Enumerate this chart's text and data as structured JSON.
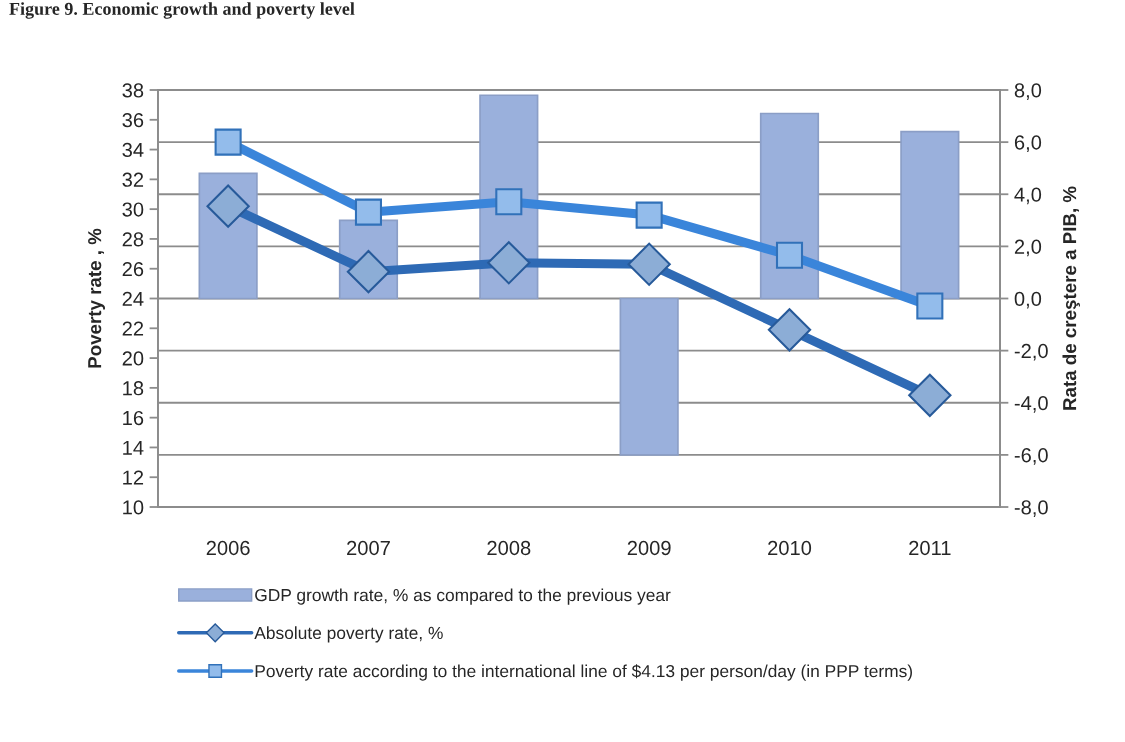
{
  "chart_data": {
    "type": "bar",
    "title": "Figure 9. Economic growth and poverty level",
    "categories": [
      "2006",
      "2007",
      "2008",
      "2009",
      "2010",
      "2011"
    ],
    "series": [
      {
        "name": "GDP growth rate, % as compared to the previous year",
        "axis": "y2",
        "color": "#9ab0dc",
        "values": [
          4.8,
          3.0,
          7.8,
          -6.0,
          7.1,
          6.4
        ]
      },
      {
        "name": "Absolute poverty rate, %",
        "type": "line",
        "color": "#2e6ab5",
        "marker": "diamond",
        "line_style": "solid",
        "values": [
          30.2,
          25.8,
          26.4,
          26.3,
          21.9,
          17.5
        ]
      },
      {
        "name": "Poverty rate according to the international line of $4.13 per person/day (in PPP terms)",
        "type": "line",
        "color": "#3a85da",
        "marker": "square",
        "line_style": "solid",
        "values": [
          34.5,
          29.8,
          30.5,
          29.6,
          26.9,
          23.5
        ]
      }
    ],
    "ylabel": "Poverty rate , %",
    "y2label": "Rata de creştere a PIB, %",
    "ylim": [
      10,
      38
    ],
    "yticks": [
      10,
      12,
      14,
      16,
      18,
      20,
      22,
      24,
      26,
      28,
      30,
      32,
      34,
      36,
      38
    ],
    "y2lim": [
      -8,
      8
    ],
    "y2ticks": [
      {
        "value": -8,
        "label": "-8,0"
      },
      {
        "value": -6,
        "label": "-6,0"
      },
      {
        "value": -4,
        "label": "-4,0"
      },
      {
        "value": -2,
        "label": "-2,0"
      },
      {
        "value": 0,
        "label": "0,0"
      },
      {
        "value": 2,
        "label": "2,0"
      },
      {
        "value": 4,
        "label": "4,0"
      },
      {
        "value": 6,
        "label": "6,0"
      },
      {
        "value": 8,
        "label": "8,0"
      }
    ],
    "grid": "y2",
    "legend": "bottom"
  }
}
